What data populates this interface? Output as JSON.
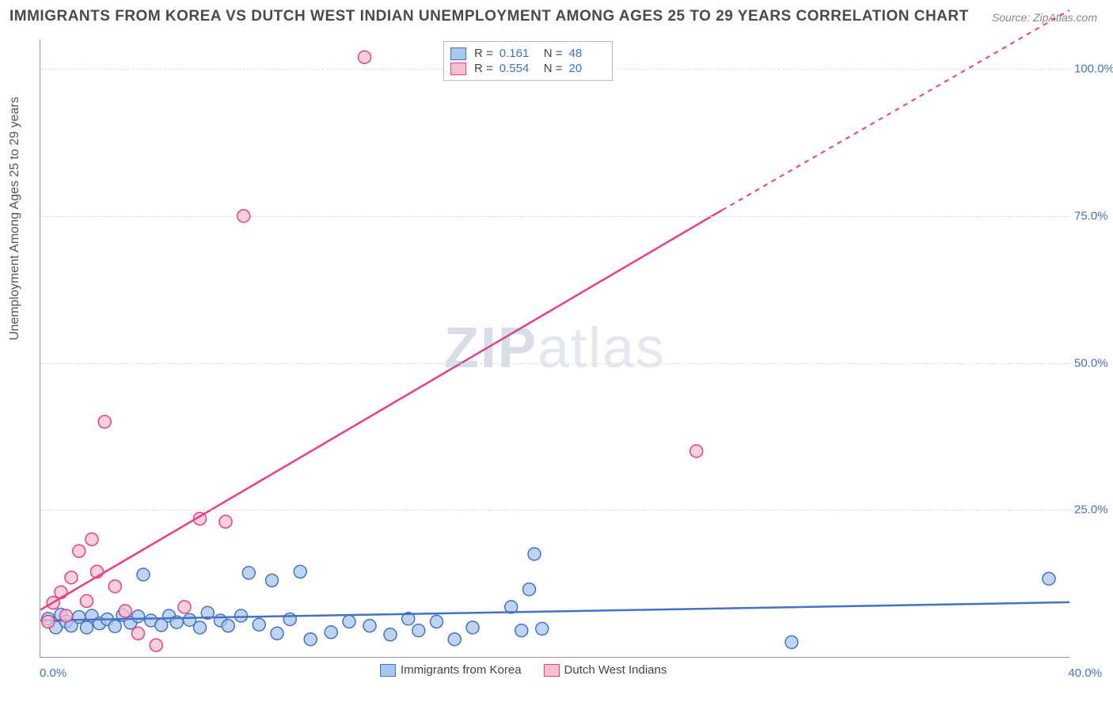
{
  "title": "IMMIGRANTS FROM KOREA VS DUTCH WEST INDIAN UNEMPLOYMENT AMONG AGES 25 TO 29 YEARS CORRELATION CHART",
  "source_text": "Source: ZipAtlas.com",
  "ylabel": "Unemployment Among Ages 25 to 29 years",
  "watermark_a": "ZIP",
  "watermark_b": "atlas",
  "chart": {
    "type": "scatter",
    "xlim": [
      0,
      40
    ],
    "ylim": [
      0,
      105
    ],
    "x_unit": "%",
    "y_unit": "%",
    "x_ticks": [
      {
        "v": 0,
        "label": "0.0%"
      },
      {
        "v": 40,
        "label": "40.0%"
      }
    ],
    "y_ticks": [
      {
        "v": 25,
        "label": "25.0%"
      },
      {
        "v": 50,
        "label": "50.0%"
      },
      {
        "v": 75,
        "label": "75.0%"
      },
      {
        "v": 100,
        "label": "100.0%"
      }
    ],
    "background_color": "#ffffff",
    "grid_color": "#dddddd",
    "axis_color": "#999999",
    "tick_label_color": "#4472c4",
    "series": [
      {
        "name": "Immigrants from Korea",
        "color_fill": "#a9c6ef",
        "color_stroke": "#4472c4",
        "marker_r": 8,
        "R": "0.161",
        "N": "48",
        "trend": {
          "x0": 0,
          "y0": 6.2,
          "x1": 40,
          "y1": 9.3,
          "dashed_from_x": 40
        },
        "points": [
          [
            0.3,
            6.5
          ],
          [
            0.6,
            5.0
          ],
          [
            0.8,
            7.2
          ],
          [
            1.0,
            6.0
          ],
          [
            1.2,
            5.3
          ],
          [
            1.5,
            6.8
          ],
          [
            1.8,
            5.0
          ],
          [
            2.0,
            7.0
          ],
          [
            2.3,
            5.7
          ],
          [
            2.6,
            6.4
          ],
          [
            2.9,
            5.2
          ],
          [
            3.2,
            7.1
          ],
          [
            3.5,
            5.8
          ],
          [
            3.8,
            6.9
          ],
          [
            4.0,
            14.0
          ],
          [
            4.3,
            6.2
          ],
          [
            4.7,
            5.4
          ],
          [
            5.0,
            7.0
          ],
          [
            5.3,
            5.9
          ],
          [
            5.8,
            6.3
          ],
          [
            6.2,
            5.0
          ],
          [
            6.5,
            7.5
          ],
          [
            7.0,
            6.2
          ],
          [
            7.3,
            5.3
          ],
          [
            7.8,
            7.0
          ],
          [
            8.1,
            14.3
          ],
          [
            8.5,
            5.5
          ],
          [
            9.0,
            13.0
          ],
          [
            9.2,
            4.0
          ],
          [
            9.7,
            6.4
          ],
          [
            10.1,
            14.5
          ],
          [
            10.5,
            3.0
          ],
          [
            11.3,
            4.2
          ],
          [
            12.0,
            6.0
          ],
          [
            12.8,
            5.3
          ],
          [
            13.6,
            3.8
          ],
          [
            14.3,
            6.5
          ],
          [
            14.7,
            4.5
          ],
          [
            15.4,
            6.0
          ],
          [
            16.1,
            3.0
          ],
          [
            16.8,
            5.0
          ],
          [
            18.3,
            8.5
          ],
          [
            18.7,
            4.5
          ],
          [
            19.0,
            11.5
          ],
          [
            19.2,
            17.5
          ],
          [
            19.5,
            4.8
          ],
          [
            29.2,
            2.5
          ],
          [
            39.2,
            13.3
          ]
        ]
      },
      {
        "name": "Dutch West Indians",
        "color_fill": "#f6c0ce",
        "color_stroke": "#e83e8c",
        "marker_r": 8,
        "R": "0.554",
        "N": "20",
        "trend": {
          "x0": 0,
          "y0": 8.0,
          "x1": 26.5,
          "y1": 76.0,
          "dashed_from_x": 26.5,
          "x2": 40,
          "y2": 110
        },
        "points": [
          [
            0.3,
            6.0
          ],
          [
            0.5,
            9.2
          ],
          [
            0.8,
            11.0
          ],
          [
            1.0,
            7.0
          ],
          [
            1.2,
            13.5
          ],
          [
            1.5,
            18.0
          ],
          [
            1.8,
            9.5
          ],
          [
            2.0,
            20.0
          ],
          [
            2.2,
            14.5
          ],
          [
            2.5,
            40.0
          ],
          [
            2.9,
            12.0
          ],
          [
            3.3,
            7.8
          ],
          [
            3.8,
            4.0
          ],
          [
            4.5,
            2.0
          ],
          [
            5.6,
            8.5
          ],
          [
            6.2,
            23.5
          ],
          [
            7.2,
            23.0
          ],
          [
            7.9,
            75.0
          ],
          [
            12.6,
            102.0
          ],
          [
            25.5,
            35.0
          ]
        ]
      }
    ]
  },
  "legend_top": {
    "rows": [
      {
        "swatch_fill": "#a9c6ef",
        "swatch_stroke": "#4472c4",
        "R_label": "R =",
        "R": "0.161",
        "N_label": "N =",
        "N": "48"
      },
      {
        "swatch_fill": "#f6c0ce",
        "swatch_stroke": "#e83e8c",
        "R_label": "R =",
        "R": "0.554",
        "N_label": "N =",
        "N": "20"
      }
    ]
  },
  "legend_bottom": {
    "items": [
      {
        "swatch_fill": "#a9c6ef",
        "swatch_stroke": "#4472c4",
        "label": "Immigrants from Korea"
      },
      {
        "swatch_fill": "#f6c0ce",
        "swatch_stroke": "#e83e8c",
        "label": "Dutch West Indians"
      }
    ]
  }
}
